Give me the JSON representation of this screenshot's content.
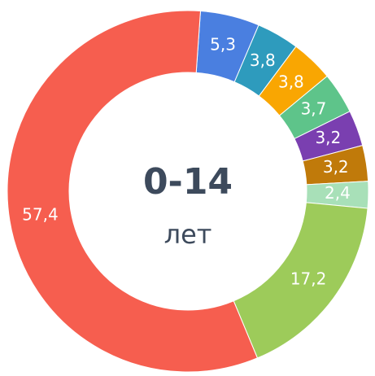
{
  "chart_data": {
    "type": "donut",
    "title": "0-14",
    "subtitle": "лет",
    "values": [
      5.3,
      3.8,
      3.8,
      3.7,
      3.2,
      3.2,
      2.4,
      17.2,
      57.4
    ],
    "value_labels": [
      "5,3",
      "3,8",
      "3,8",
      "3,7",
      "3,2",
      "3,2",
      "2,4",
      "17,2",
      "57,4"
    ],
    "colors": [
      "#4a7fe0",
      "#2e9bbd",
      "#f9a602",
      "#5ec48a",
      "#7a3fb0",
      "#c07a0a",
      "#a8e0b8",
      "#9dcb5a",
      "#f65e4f"
    ]
  }
}
